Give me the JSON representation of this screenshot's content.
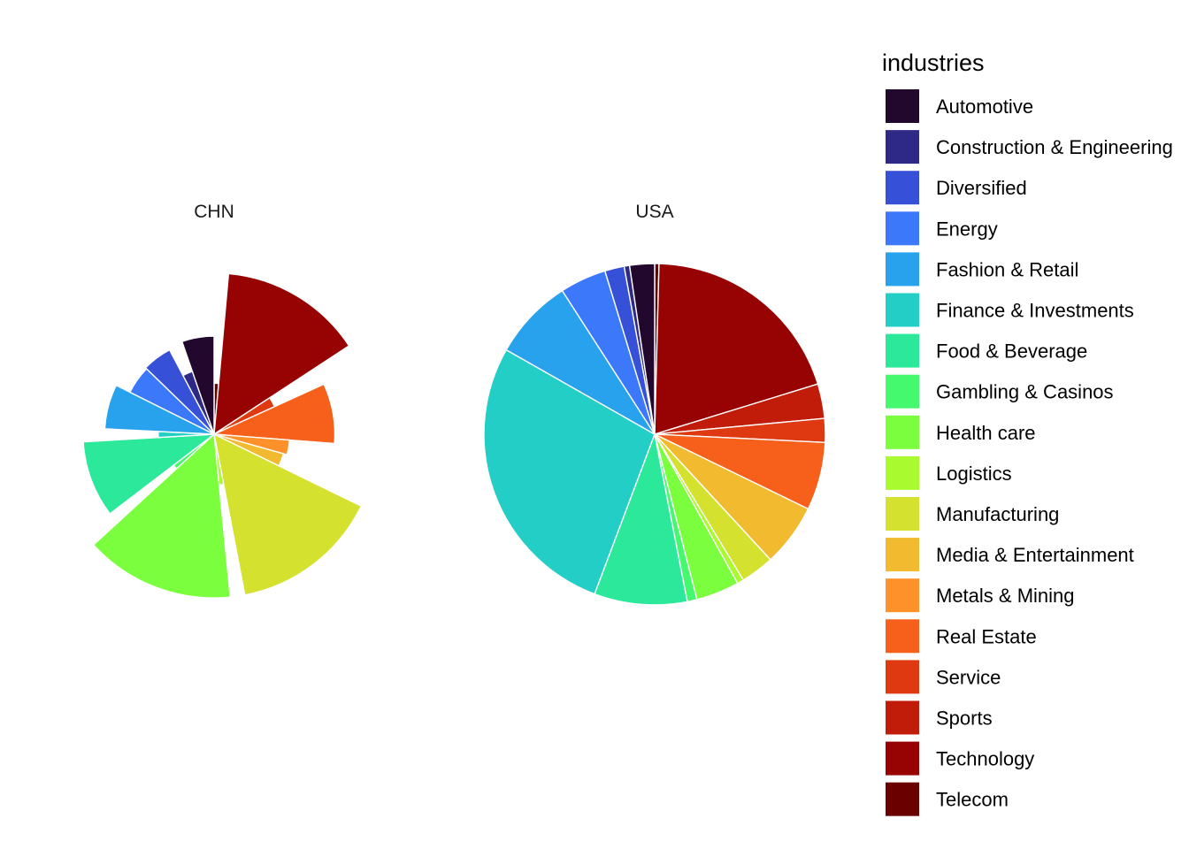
{
  "chart_data": {
    "type": "pie",
    "style": "rose-pie (radius proportional to value, equal angles)",
    "legend": {
      "title": "industries",
      "position": "right"
    },
    "categories": [
      "Automotive",
      "Construction & Engineering",
      "Diversified",
      "Energy",
      "Fashion & Retail",
      "Finance & Investments",
      "Food & Beverage",
      "Gambling & Casinos",
      "Health care",
      "Logistics",
      "Manufacturing",
      "Media & Entertainment",
      "Metals & Mining",
      "Real Estate",
      "Service",
      "Sports",
      "Technology",
      "Telecom"
    ],
    "colors": [
      "#23082E",
      "#2E2887",
      "#3750D8",
      "#3B78FA",
      "#28A2EC",
      "#22CEC6",
      "#2BE89A",
      "#45F96F",
      "#7AFE3D",
      "#A9FB2F",
      "#D4E12E",
      "#F1BA2F",
      "#FE9129",
      "#F6601A",
      "#DF3912",
      "#C11B0A",
      "#970202",
      "#6A0000"
    ],
    "panels": [
      {
        "name": "CHN",
        "values": [
          3.7,
          1.7,
          3.5,
          3.4,
          4.6,
          1.2,
          6.6,
          1.0,
          10.3,
          1.0,
          10.3,
          2.0,
          2.2,
          5.6,
          1.7,
          0.0,
          10.0,
          1.0
        ]
      },
      {
        "name": "USA",
        "values": [
          2.3,
          0.5,
          1.8,
          4.3,
          7.5,
          26.9,
          8.6,
          0.9,
          4.0,
          0.6,
          3.1,
          5.8,
          0.0,
          6.3,
          2.2,
          3.2,
          19.4,
          0.4
        ]
      }
    ]
  }
}
